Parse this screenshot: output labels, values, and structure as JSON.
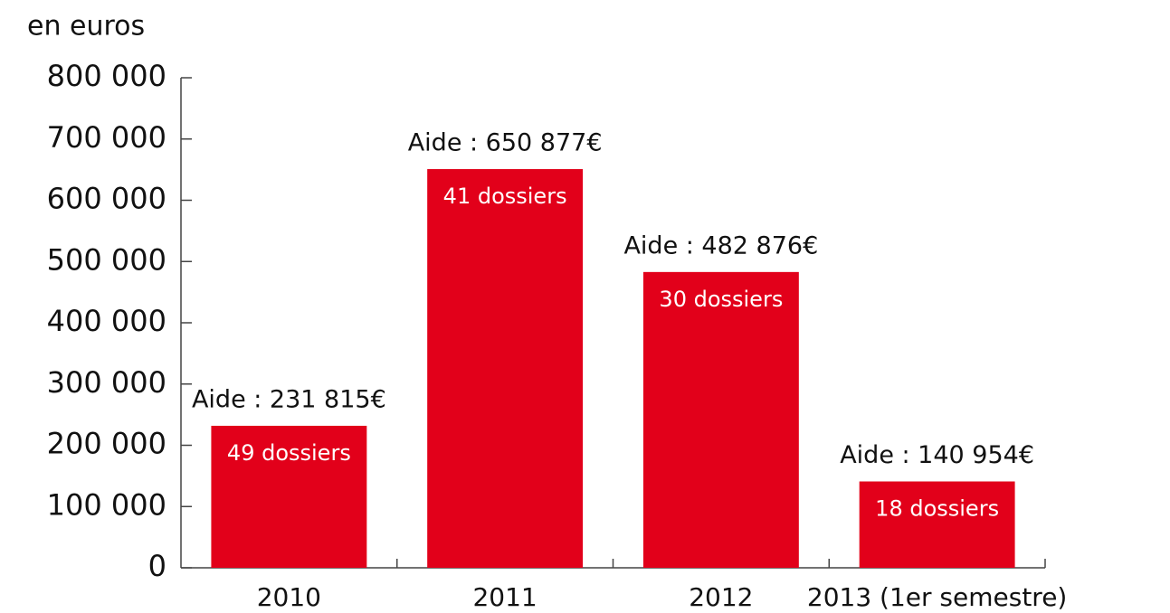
{
  "chart_data": {
    "type": "bar",
    "y_axis_label": "en euros",
    "categories": [
      "2010",
      "2011",
      "2012",
      "2013 (1er semestre)"
    ],
    "values": [
      231815,
      650877,
      482876,
      140954
    ],
    "value_labels": [
      "Aide : 231 815€",
      "Aide : 650 877€",
      "Aide : 482 876€",
      "Aide : 140 954€"
    ],
    "annotations": [
      "49 dossiers",
      "41  dossiers",
      "30 dossiers",
      "18 dossiers"
    ],
    "color": "#e2001a",
    "ylim": [
      0,
      800000
    ],
    "yticks": [
      0,
      {
        "value": 100000,
        "label": "100 000"
      },
      {
        "value": 200000,
        "label": "200 000"
      },
      {
        "value": 300000,
        "label": "300 000"
      },
      {
        "value": 400000,
        "label": "400 000"
      },
      {
        "value": 500000,
        "label": "500 000"
      },
      {
        "value": 600000,
        "label": "600 000"
      },
      {
        "value": 700000,
        "label": "700 000"
      },
      {
        "value": 800000,
        "label": "800 000"
      }
    ],
    "grid": false
  }
}
